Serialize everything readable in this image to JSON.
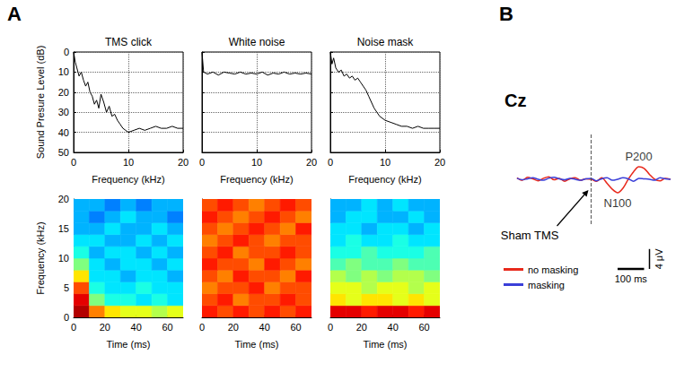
{
  "panel_labels": [
    "A",
    "B"
  ],
  "chart_data": [
    {
      "type": "line",
      "title": "TMS click",
      "x_label": "Frequency (kHz)",
      "y_label": "Sound Presure Level (dB)",
      "x": [
        0,
        0.3,
        0.6,
        1,
        1.4,
        1.8,
        2.2,
        2.6,
        3,
        3.4,
        3.8,
        4.2,
        4.6,
        5,
        5.5,
        6,
        6.5,
        7,
        7.5,
        8,
        8.5,
        9,
        9.5,
        10,
        11,
        12,
        13,
        14,
        15,
        16,
        17,
        18,
        19,
        20
      ],
      "values": [
        0,
        5,
        8,
        12,
        10,
        14,
        17,
        15,
        20,
        22,
        26,
        24,
        28,
        21,
        25,
        30,
        27,
        32,
        31,
        34,
        36,
        38,
        39,
        40,
        39,
        38,
        39,
        38,
        37,
        38,
        38,
        37,
        38,
        38
      ],
      "color": "#000000",
      "xlim": [
        0,
        20
      ],
      "xticks": [
        0,
        10,
        20
      ],
      "ylim": [
        50,
        0
      ],
      "yticks": [
        0,
        10,
        20,
        30,
        40,
        50
      ],
      "grid": true
    },
    {
      "type": "line",
      "title": "White noise",
      "x_label": "Frequency (kHz)",
      "x": [
        0,
        0.3,
        1,
        2,
        3,
        4,
        5,
        6,
        7,
        8,
        9,
        10,
        11,
        12,
        13,
        14,
        15,
        16,
        17,
        18,
        19,
        20
      ],
      "values": [
        0,
        10,
        11,
        10,
        11.5,
        10,
        10.5,
        11,
        10,
        11,
        10.5,
        11,
        10,
        11.5,
        10.5,
        11,
        10,
        11,
        10.5,
        11,
        10.5,
        11
      ],
      "color": "#000000",
      "xlim": [
        0,
        20
      ],
      "xticks": [
        0,
        10,
        20
      ],
      "ylim": [
        50,
        0
      ],
      "yticks": [
        0,
        10,
        20,
        30,
        40,
        50
      ],
      "grid": true,
      "tick_labels": "x"
    },
    {
      "type": "line",
      "title": "Noise mask",
      "x_label": "Frequency (kHz)",
      "x": [
        0,
        0.3,
        0.6,
        1,
        1.5,
        2,
        2.5,
        3,
        3.5,
        4,
        4.5,
        5,
        5.5,
        6,
        6.5,
        7,
        7.5,
        8,
        8.5,
        9,
        10,
        11,
        12,
        13,
        14,
        15,
        16,
        17,
        18,
        19,
        20
      ],
      "values": [
        0,
        6,
        3,
        8,
        10,
        9,
        12,
        11,
        13,
        12,
        14,
        13,
        15,
        17,
        19,
        22,
        25,
        28,
        30,
        32,
        34,
        35,
        36,
        37,
        37,
        38,
        37,
        38,
        38,
        38,
        38
      ],
      "color": "#000000",
      "xlim": [
        0,
        20
      ],
      "xticks": [
        0,
        10,
        20
      ],
      "ylim": [
        50,
        0
      ],
      "yticks": [
        0,
        10,
        20,
        30,
        40,
        50
      ],
      "grid": true,
      "tick_labels": "x"
    },
    {
      "type": "heatmap",
      "x_label": "Time (ms)",
      "y_label": "Frequency (kHz)",
      "x_bins": [
        0,
        10,
        20,
        30,
        40,
        50,
        60,
        70
      ],
      "y_bins": [
        0,
        2,
        4,
        6,
        8,
        10,
        12,
        14,
        16,
        18,
        20
      ],
      "cells": [
        [
          9.5,
          7.5,
          6.5,
          6,
          6,
          5.5,
          6
        ],
        [
          9,
          5,
          4,
          4,
          3.5,
          4,
          3.5
        ],
        [
          8,
          4,
          3.5,
          3.5,
          4,
          3.5,
          3.5
        ],
        [
          6.5,
          3.5,
          3.5,
          3,
          3.5,
          3.5,
          3
        ],
        [
          5,
          3.5,
          3,
          3.5,
          3.5,
          3,
          3.5
        ],
        [
          4,
          3,
          3.5,
          3.5,
          3,
          3.5,
          3
        ],
        [
          3.5,
          3.5,
          3,
          3,
          3.5,
          3,
          3.5
        ],
        [
          3,
          3,
          3.5,
          3,
          3,
          3.5,
          3
        ],
        [
          3,
          2.5,
          3,
          3.5,
          3,
          3,
          2.5
        ],
        [
          3,
          3,
          2.5,
          3,
          2.5,
          3,
          3
        ]
      ],
      "zlim": [
        0,
        10
      ],
      "xlim": [
        0,
        70
      ],
      "xticks": [
        0,
        20,
        40,
        60
      ],
      "ylim": [
        0,
        20
      ],
      "yticks": [
        0,
        5,
        10,
        15,
        20
      ]
    },
    {
      "type": "heatmap",
      "x_label": "Time (ms)",
      "x_bins": [
        0,
        10,
        20,
        30,
        40,
        50,
        60,
        70
      ],
      "y_bins": [
        0,
        2,
        4,
        6,
        8,
        10,
        12,
        14,
        16,
        18,
        20
      ],
      "cells": [
        [
          8.5,
          8,
          8.5,
          8,
          8.5,
          8,
          8.5
        ],
        [
          8,
          8.5,
          7.5,
          8,
          8,
          8.5,
          8
        ],
        [
          7.5,
          8,
          8,
          8.5,
          7.5,
          8,
          8
        ],
        [
          8,
          7.5,
          8.5,
          8,
          8,
          7.5,
          8.5
        ],
        [
          8.5,
          8,
          8,
          7.5,
          8.5,
          8,
          7.5
        ],
        [
          8,
          8.5,
          7.5,
          8,
          8,
          8.5,
          8
        ],
        [
          7.5,
          8,
          8.5,
          8,
          7.5,
          8,
          8
        ],
        [
          8,
          7.5,
          8,
          8.5,
          8,
          7.5,
          8.5
        ],
        [
          8.5,
          8,
          7.5,
          8,
          8.5,
          8,
          7.5
        ],
        [
          8,
          8.5,
          8,
          7.5,
          8,
          8.5,
          8
        ]
      ],
      "zlim": [
        0,
        10
      ],
      "xlim": [
        0,
        70
      ],
      "xticks": [
        0,
        20,
        40,
        60
      ],
      "ylim": [
        0,
        20
      ],
      "yticks": [
        0,
        5,
        10,
        15,
        20
      ],
      "tick_labels": "x"
    },
    {
      "type": "heatmap",
      "x_label": "Time (ms)",
      "x_bins": [
        0,
        10,
        20,
        30,
        40,
        50,
        60,
        70
      ],
      "y_bins": [
        0,
        2,
        4,
        6,
        8,
        10,
        12,
        14,
        16,
        18,
        20
      ],
      "cells": [
        [
          9,
          9,
          8.5,
          9,
          9,
          8.5,
          9
        ],
        [
          6.5,
          6,
          6.5,
          6.5,
          6,
          6.5,
          6
        ],
        [
          6,
          6,
          5.5,
          6,
          6,
          5.5,
          6
        ],
        [
          5.5,
          5,
          5.5,
          5,
          5.5,
          5.5,
          5
        ],
        [
          4.5,
          5,
          4.5,
          4.5,
          5,
          4.5,
          4.5
        ],
        [
          4,
          4,
          4.5,
          4,
          4,
          4,
          4.5
        ],
        [
          3.5,
          4,
          3.5,
          3.5,
          4,
          3.5,
          3.5
        ],
        [
          3.5,
          3.5,
          3,
          3.5,
          3.5,
          3,
          3.5
        ],
        [
          3,
          3.5,
          3.5,
          3,
          3,
          3.5,
          3
        ],
        [
          3,
          3,
          3.5,
          3,
          3.5,
          3,
          3
        ]
      ],
      "zlim": [
        0,
        10
      ],
      "xlim": [
        0,
        70
      ],
      "xticks": [
        0,
        20,
        40,
        60
      ],
      "ylim": [
        0,
        20
      ],
      "yticks": [
        0,
        5,
        10,
        15,
        20
      ],
      "tick_labels": "x"
    },
    {
      "type": "line",
      "title": "Cz",
      "x": [
        -280,
        -260,
        -240,
        -220,
        -200,
        -180,
        -160,
        -140,
        -120,
        -100,
        -80,
        -60,
        -40,
        -20,
        0,
        20,
        40,
        60,
        80,
        100,
        120,
        140,
        160,
        180,
        200,
        220,
        240,
        260,
        280,
        300
      ],
      "series": [
        {
          "name": "no masking",
          "color": "#e8291c",
          "values": [
            0.3,
            -0.2,
            0.4,
            0.1,
            -0.3,
            0.2,
            0.5,
            -0.1,
            0.2,
            -0.4,
            0.1,
            0.3,
            -0.2,
            0.1,
            0.0,
            -0.4,
            0.3,
            -0.8,
            -2.0,
            -2.7,
            -1.8,
            0.0,
            1.5,
            2.5,
            2.2,
            1.0,
            0.0,
            -0.3,
            0.2,
            0.0
          ]
        },
        {
          "name": "masking",
          "color": "#3a3fd8",
          "values": [
            0.2,
            -0.1,
            0.1,
            0.3,
            0.0,
            -0.2,
            0.2,
            0.4,
            0.1,
            -0.1,
            0.2,
            0.0,
            -0.2,
            0.1,
            0.2,
            -0.3,
            0.1,
            0.3,
            -0.2,
            0.0,
            0.3,
            0.1,
            -0.4,
            0.2,
            0.1,
            0.0,
            -0.2,
            0.3,
            0.1,
            0.0
          ]
        }
      ],
      "xlim": [
        -300,
        310
      ],
      "ylim": [
        -9,
        9
      ],
      "tick_labels": false,
      "legend": "lower left",
      "event": {
        "x": 0,
        "label": "Sham TMS"
      },
      "annotations": [
        {
          "text": "P200",
          "x": 180,
          "y": 2.5
        },
        {
          "text": "N100",
          "x": 100,
          "y": -2.7
        }
      ],
      "scale_bars": {
        "x": 100,
        "x_label": "100 ms",
        "y": 4,
        "y_label": "4 μV"
      }
    }
  ]
}
